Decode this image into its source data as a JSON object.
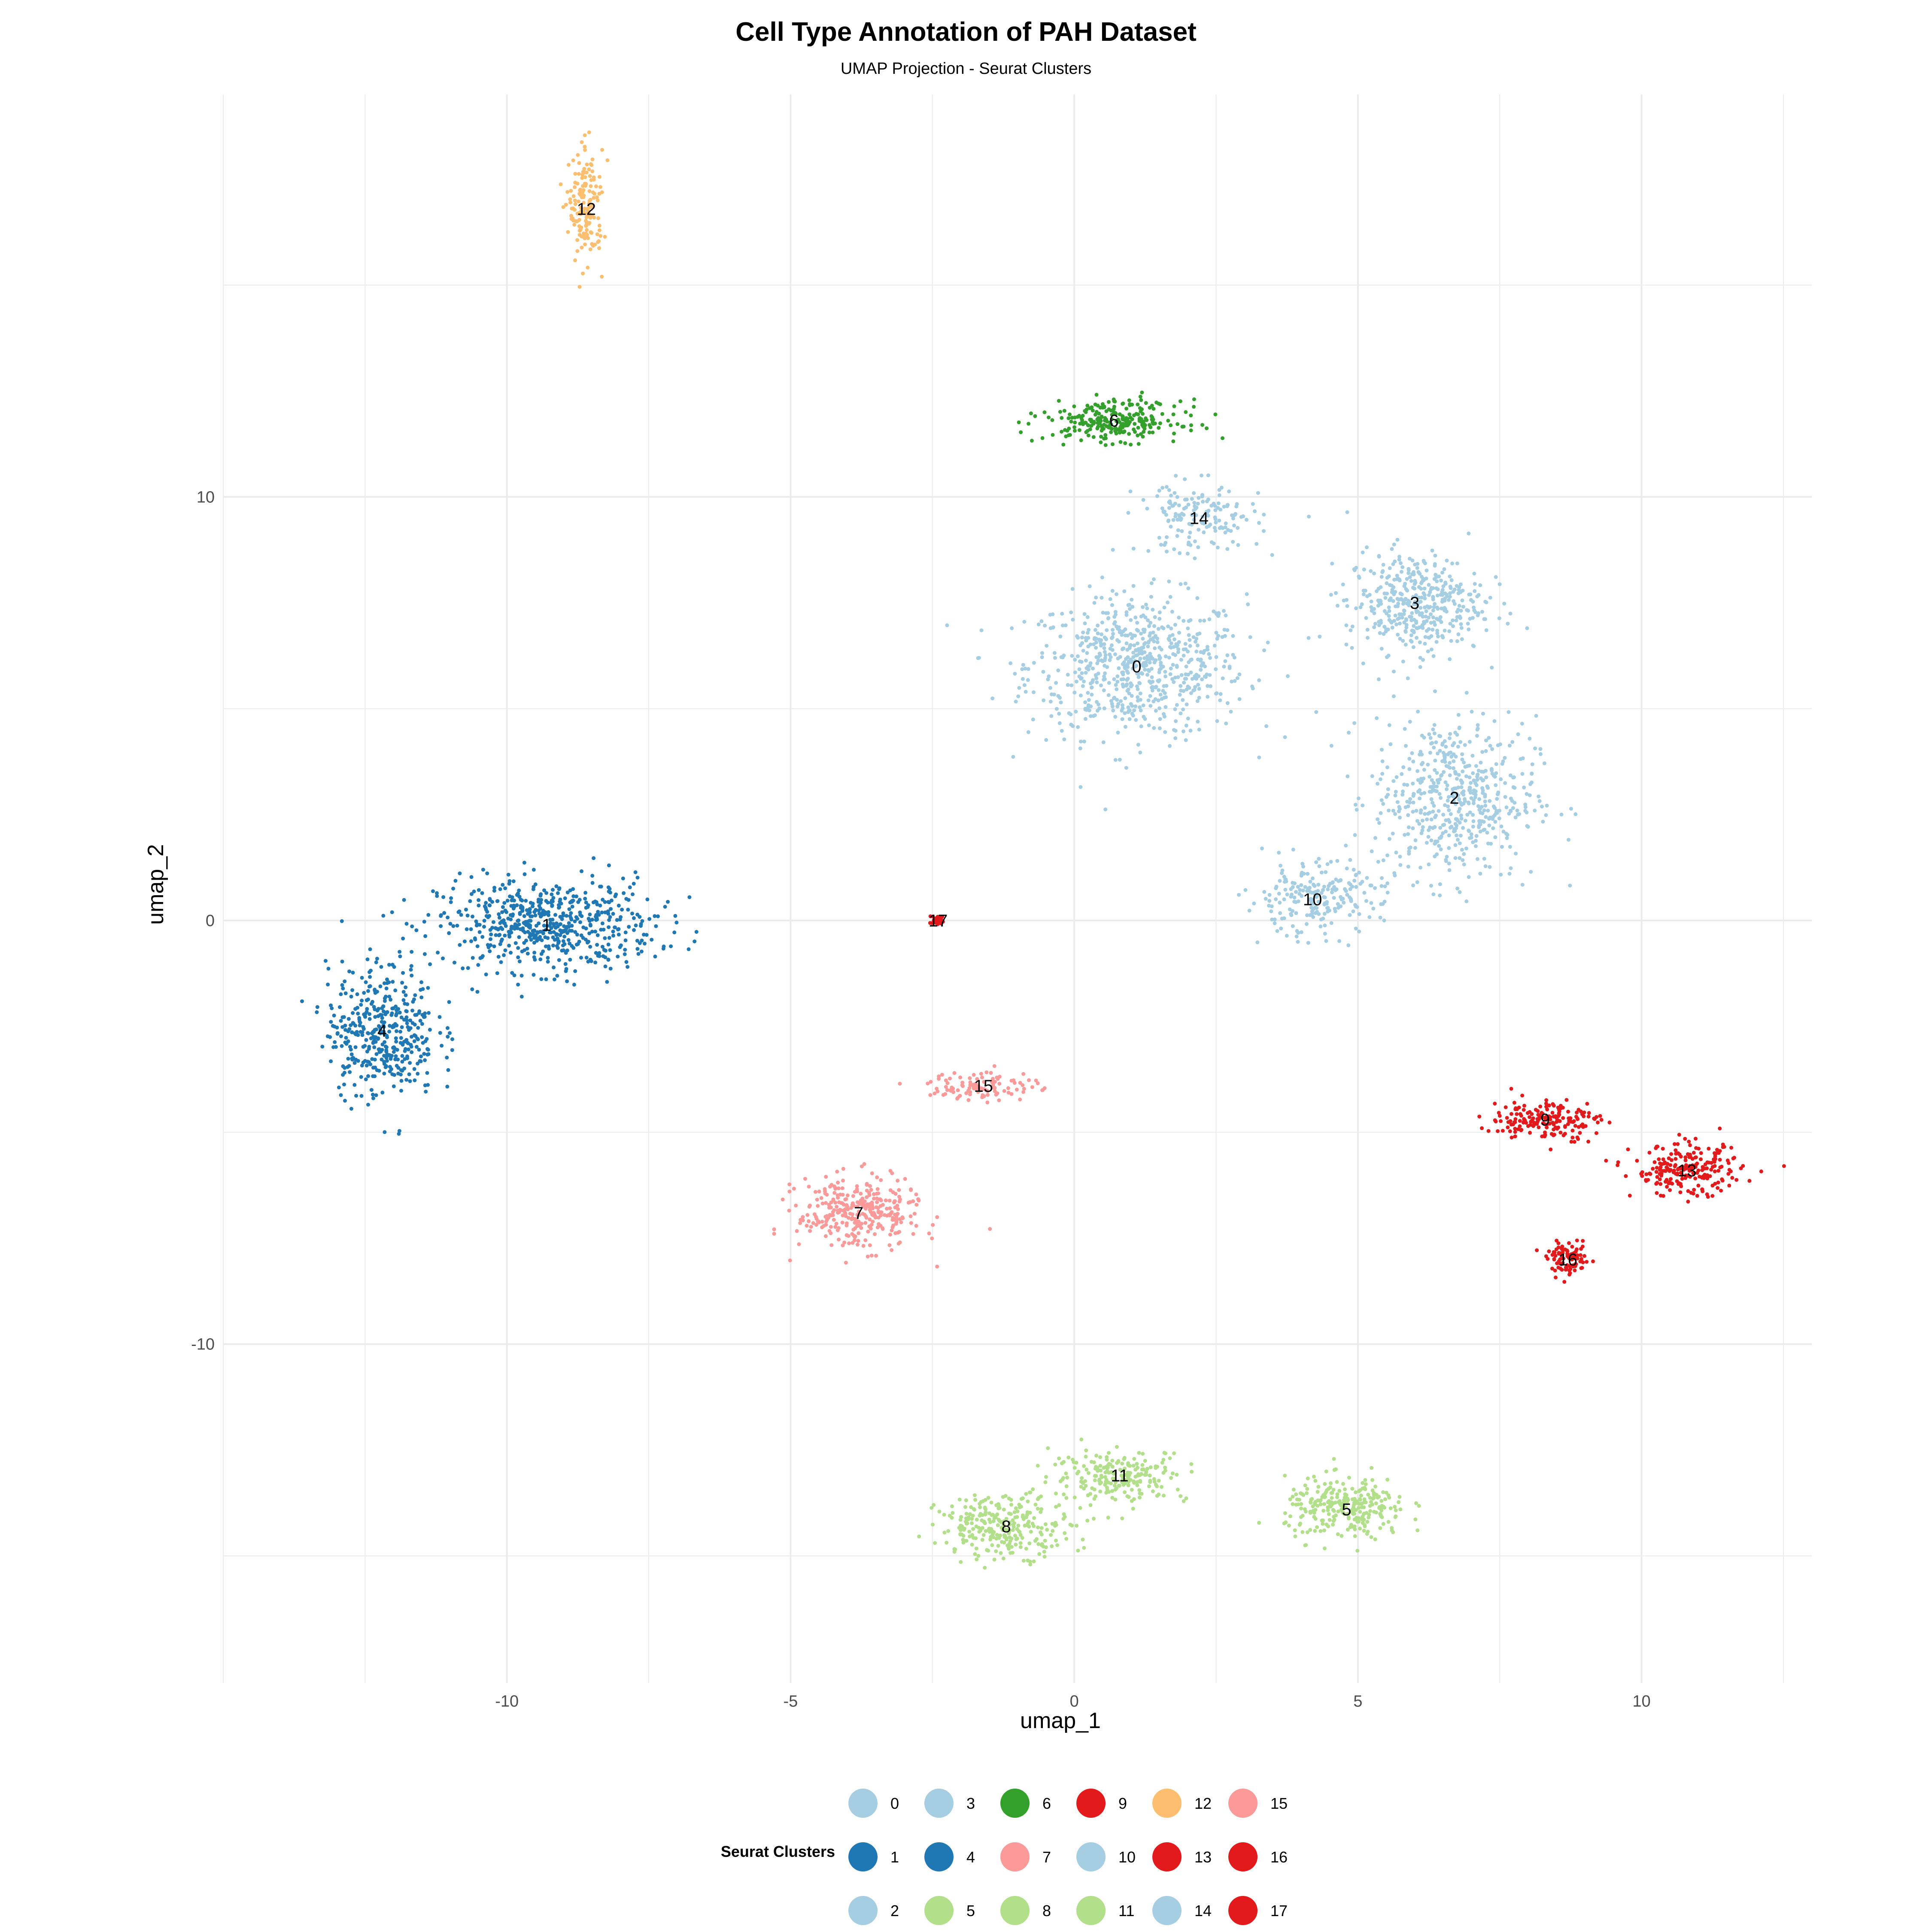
{
  "chart_data": {
    "type": "scatter",
    "title": "Cell Type Annotation of PAH Dataset",
    "subtitle": "UMAP Projection - Seurat Clusters",
    "xlabel": "umap_1",
    "ylabel": "umap_2",
    "xlim": [
      -15,
      13
    ],
    "ylim": [
      -18,
      19.5
    ],
    "x_ticks": [
      -10,
      -5,
      0,
      5,
      10
    ],
    "y_ticks": [
      -10,
      0,
      10
    ],
    "grid": true,
    "legend_position": "bottom",
    "legend_title": "Seurat Clusters",
    "clusters": [
      {
        "id": "0",
        "color": "#A6CEE3",
        "label_x": 1.1,
        "label_y": 6.0,
        "spread": [
          1.6,
          1.4
        ],
        "count": 700
      },
      {
        "id": "1",
        "color": "#1F78B4",
        "label_x": -9.3,
        "label_y": -0.1,
        "spread": [
          1.6,
          0.9
        ],
        "count": 600
      },
      {
        "id": "2",
        "color": "#A6CEE3",
        "label_x": 6.7,
        "label_y": 2.9,
        "spread": [
          1.2,
          1.6
        ],
        "count": 550
      },
      {
        "id": "3",
        "color": "#A6CEE3",
        "label_x": 6.0,
        "label_y": 7.5,
        "spread": [
          1.0,
          1.0
        ],
        "count": 420
      },
      {
        "id": "4",
        "color": "#1F78B4",
        "label_x": -12.2,
        "label_y": -2.6,
        "spread": [
          0.8,
          1.3
        ],
        "count": 420
      },
      {
        "id": "5",
        "color": "#B2DF8A",
        "label_x": 4.8,
        "label_y": -13.9,
        "spread": [
          0.9,
          0.6
        ],
        "count": 280
      },
      {
        "id": "6",
        "color": "#33A02C",
        "label_x": 0.7,
        "label_y": 11.8,
        "spread": [
          1.0,
          0.4
        ],
        "count": 260
      },
      {
        "id": "7",
        "color": "#FB9A99",
        "label_x": -3.8,
        "label_y": -6.9,
        "spread": [
          0.9,
          0.7
        ],
        "count": 330
      },
      {
        "id": "8",
        "color": "#B2DF8A",
        "label_x": -1.2,
        "label_y": -14.3,
        "spread": [
          1.0,
          0.6
        ],
        "count": 280
      },
      {
        "id": "9",
        "color": "#E31A1C",
        "label_x": 8.3,
        "label_y": -4.7,
        "spread": [
          0.8,
          0.4
        ],
        "count": 180
      },
      {
        "id": "10",
        "color": "#A6CEE3",
        "label_x": 4.2,
        "label_y": 0.5,
        "spread": [
          1.0,
          0.7
        ],
        "count": 220
      },
      {
        "id": "11",
        "color": "#B2DF8A",
        "label_x": 0.8,
        "label_y": -13.1,
        "spread": [
          1.0,
          0.5
        ],
        "count": 220
      },
      {
        "id": "12",
        "color": "#FDBF6F",
        "label_x": -8.6,
        "label_y": 16.8,
        "spread": [
          0.25,
          1.1
        ],
        "count": 160
      },
      {
        "id": "13",
        "color": "#E31A1C",
        "label_x": 10.8,
        "label_y": -5.9,
        "spread": [
          0.8,
          0.5
        ],
        "count": 220
      },
      {
        "id": "14",
        "color": "#A6CEE3",
        "label_x": 2.2,
        "label_y": 9.5,
        "spread": [
          0.9,
          0.7
        ],
        "count": 160
      },
      {
        "id": "15",
        "color": "#FB9A99",
        "label_x": -1.6,
        "label_y": -3.9,
        "spread": [
          0.8,
          0.3
        ],
        "count": 110
      },
      {
        "id": "16",
        "color": "#E31A1C",
        "label_x": 8.7,
        "label_y": -8.0,
        "spread": [
          0.3,
          0.3
        ],
        "count": 100
      },
      {
        "id": "17",
        "color": "#E31A1C",
        "label_x": -2.4,
        "label_y": 0.0,
        "spread": [
          0.12,
          0.1
        ],
        "count": 30
      }
    ]
  }
}
